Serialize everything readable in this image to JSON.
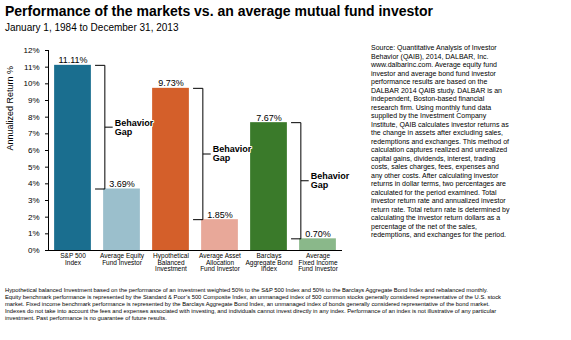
{
  "chart_data": {
    "type": "bar",
    "title": "Performance of the markets vs. an average mutual fund investor",
    "subtitle": "January 1, 1984 to December 31, 2013",
    "categories": [
      "S&P 500\nIndex",
      "Average Equity\nFund Investor",
      "Hypothetical\nBalanced\nInvestment",
      "Average Asset\nAllocation\nFund Investor",
      "Barclays\nAggregate Bond\nIndex",
      "Average\nFixed Income\nFund Investor"
    ],
    "values": [
      11.11,
      3.69,
      9.73,
      1.85,
      7.67,
      0.7
    ],
    "colors": [
      "#1a6e8f",
      "#9bbfcc",
      "#d45f2a",
      "#e8a899",
      "#3a7a2a",
      "#8ab88a"
    ],
    "value_labels": [
      "11.11%",
      "3.69%",
      "9.73%",
      "1.85%",
      "7.67%",
      "0.70%"
    ],
    "data_labels": true,
    "ylabel": "Annualized Return %",
    "ylim": [
      0,
      12
    ],
    "yticks": [
      {
        "value": 0,
        "label": "0%"
      },
      {
        "value": 1,
        "label": "1%"
      },
      {
        "value": 2,
        "label": "2%"
      },
      {
        "value": 3,
        "label": "3%"
      },
      {
        "value": 4,
        "label": "4%"
      },
      {
        "value": 5,
        "label": "5%"
      },
      {
        "value": 6,
        "label": "6%"
      },
      {
        "value": 7,
        "label": "7%"
      },
      {
        "value": 8,
        "label": "8%"
      },
      {
        "value": 9,
        "label": "9%"
      },
      {
        "value": 10,
        "label": "10%"
      },
      {
        "value": 11,
        "label": "11%"
      },
      {
        "value": 12,
        "label": "12%"
      }
    ],
    "grid": false,
    "annotations": [
      {
        "text": "Behavior\nGap",
        "from": "S&P 500\nIndex",
        "to": "Average Equity\nFund Investor"
      },
      {
        "text": "Behavior\nGap",
        "from": "Hypothetical\nBalanced\nInvestment",
        "to": "Average Asset\nAllocation\nFund Investor"
      },
      {
        "text": "Behavior\nGap",
        "from": "Barclays\nAggregate Bond\nIndex",
        "to": "Average\nFixed Income\nFund Investor"
      }
    ],
    "source": "Source: Quantitative Analysis of Investor\nBehavior (QAIB), 2014, DALBAR, Inc.\nwww.dalbarinc.com. Average equity fund\ninvestor and average bond fund investor\nperformance results are based on the\nDALBAR 2014 QAIB study. DALBAR is an\nindependent, Boston-based financial\nresearch firm. Using monthly fund data\nsupplied by the Investment Company\nInstitute, QAIB calculates investor returns as\nthe change in assets after excluding sales,\nredemptions and exchanges. This method of\ncalculation captures realized and unrealized\ncapital gains, dividends, interest, trading\ncosts, sales charges, fees, expenses and\nany other costs. After calculating investor\nreturns in dollar terms, two percentages are\ncalculated for the period examined. Total\ninvestor return rate and annualized investor\nreturn rate. Total return rate is determined by\ncalculating the investor return dollars as a\npercentage of the net of the sales,\nredemptions, and exchanges for the period.",
    "footer": "Hypothetical balanced Investment based on the performance of an investment weighted 50% to the S&P 500 Index and 50% to the Barclays Aggregate Bond Index and rebalanced monthly.\nEquity benchmark performance is represented by the Standard & Poor’s 500 Composite Index, an unmanaged index of 500 common stocks generally considered representative of the U.S. stock\nmarket. Fixed income benchmark performance is represented by the Barclays Aggregate Bond Index, an unmanaged index of bonds generally considered representative of the bond market.\nIndexes do not take into account the fees and expenses associated with investing, and individuals cannot invest directly in any index. Performance of an index is not illustrative of any particular\ninvestment. Past performance is no guarantee of future results."
  }
}
